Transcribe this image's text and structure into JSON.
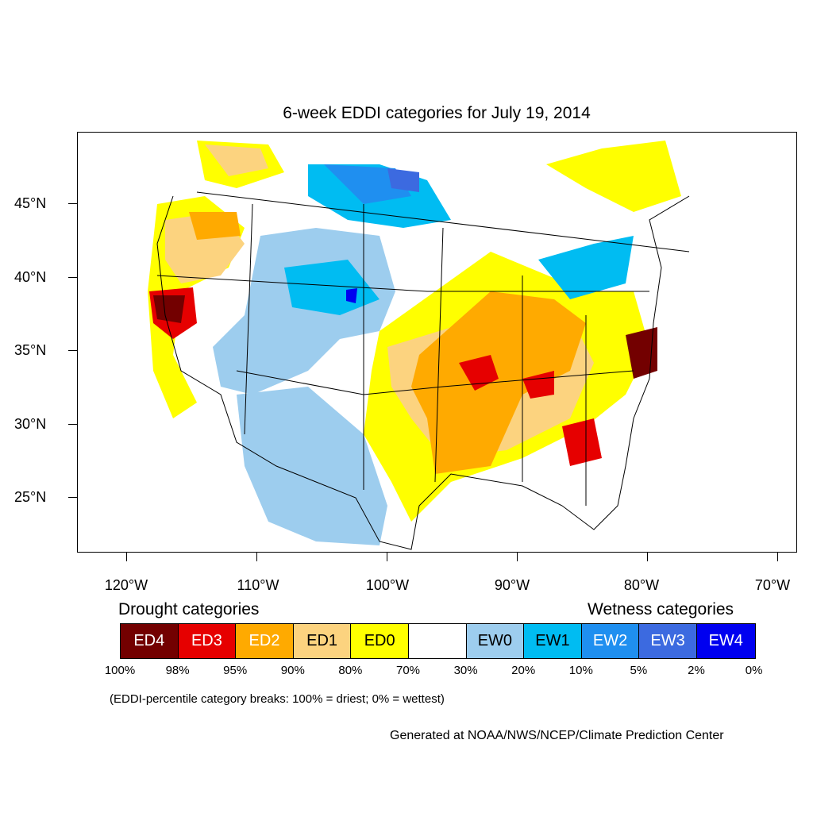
{
  "title": "6-week EDDI categories for July 19, 2014",
  "axes": {
    "lat_labels": [
      "45°N",
      "40°N",
      "35°N",
      "30°N",
      "25°N"
    ],
    "lon_labels": [
      "120°W",
      "110°W",
      "100°W",
      "90°W",
      "80°W",
      "70°W"
    ]
  },
  "legend": {
    "drought_heading": "Drought categories",
    "wetness_heading": "Wetness categories",
    "categories": [
      {
        "label": "ED4",
        "color": "#730000",
        "text_color": "#ffffff"
      },
      {
        "label": "ED3",
        "color": "#e60000",
        "text_color": "#ffffff"
      },
      {
        "label": "ED2",
        "color": "#ffaa00",
        "text_color": "#ffffff"
      },
      {
        "label": "ED1",
        "color": "#fcd37f",
        "text_color": "#000000"
      },
      {
        "label": "ED0",
        "color": "#ffff00",
        "text_color": "#000000"
      },
      {
        "label": "",
        "color": "#ffffff",
        "text_color": "#000000"
      },
      {
        "label": "EW0",
        "color": "#9dcdee",
        "text_color": "#000000"
      },
      {
        "label": "EW1",
        "color": "#00bcf2",
        "text_color": "#000000"
      },
      {
        "label": "EW2",
        "color": "#1f8ff0",
        "text_color": "#ffffff"
      },
      {
        "label": "EW3",
        "color": "#3c6ae0",
        "text_color": "#ffffff"
      },
      {
        "label": "EW4",
        "color": "#0000f0",
        "text_color": "#ffffff"
      }
    ],
    "breaks": [
      "100%",
      "98%",
      "95%",
      "90%",
      "80%",
      "70%",
      "30%",
      "20%",
      "10%",
      "5%",
      "2%",
      "0%"
    ],
    "note": "(EDDI-percentile category breaks: 100% = driest; 0% = wettest)"
  },
  "credit": "Generated at NOAA/NWS/NCEP/Climate Prediction Center"
}
